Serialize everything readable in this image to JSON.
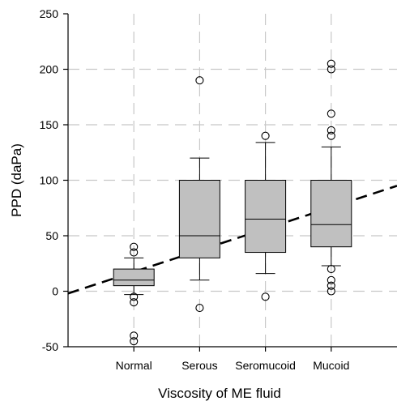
{
  "chart_data": {
    "type": "box",
    "title": "",
    "xlabel": "Viscosity of ME fluid",
    "ylabel": "PPD (daPa)",
    "ylim": [
      -50,
      250
    ],
    "yticks": [
      -50,
      0,
      50,
      100,
      150,
      200,
      250
    ],
    "grid": true,
    "categories": [
      "Normal",
      "Serous",
      "Seromucoid",
      "Mucoid"
    ],
    "boxes": [
      {
        "category": "Normal",
        "whisker_low": -3,
        "q1": 5,
        "median": 10,
        "q3": 20,
        "whisker_high": 30,
        "outliers": [
          40,
          35,
          -5,
          -10,
          -40,
          -45
        ]
      },
      {
        "category": "Serous",
        "whisker_low": 10,
        "q1": 30,
        "median": 50,
        "q3": 100,
        "whisker_high": 120,
        "outliers": [
          190,
          -15
        ]
      },
      {
        "category": "Seromucoid",
        "whisker_low": 16,
        "q1": 35,
        "median": 65,
        "q3": 100,
        "whisker_high": 134,
        "outliers": [
          140,
          -5
        ]
      },
      {
        "category": "Mucoid",
        "whisker_low": 23,
        "q1": 40,
        "median": 60,
        "q3": 100,
        "whisker_high": 130,
        "outliers": [
          205,
          200,
          160,
          145,
          140,
          20,
          10,
          5,
          0
        ]
      }
    ],
    "trend_line": {
      "style": "dashed",
      "color": "#000000",
      "x_start": 0.0,
      "y_start": -2,
      "x_end": 5.0,
      "y_end": 95
    },
    "colors": {
      "box_fill": "#c0c0c0",
      "grid": "#c8c8c8",
      "axis": "#000000"
    }
  }
}
